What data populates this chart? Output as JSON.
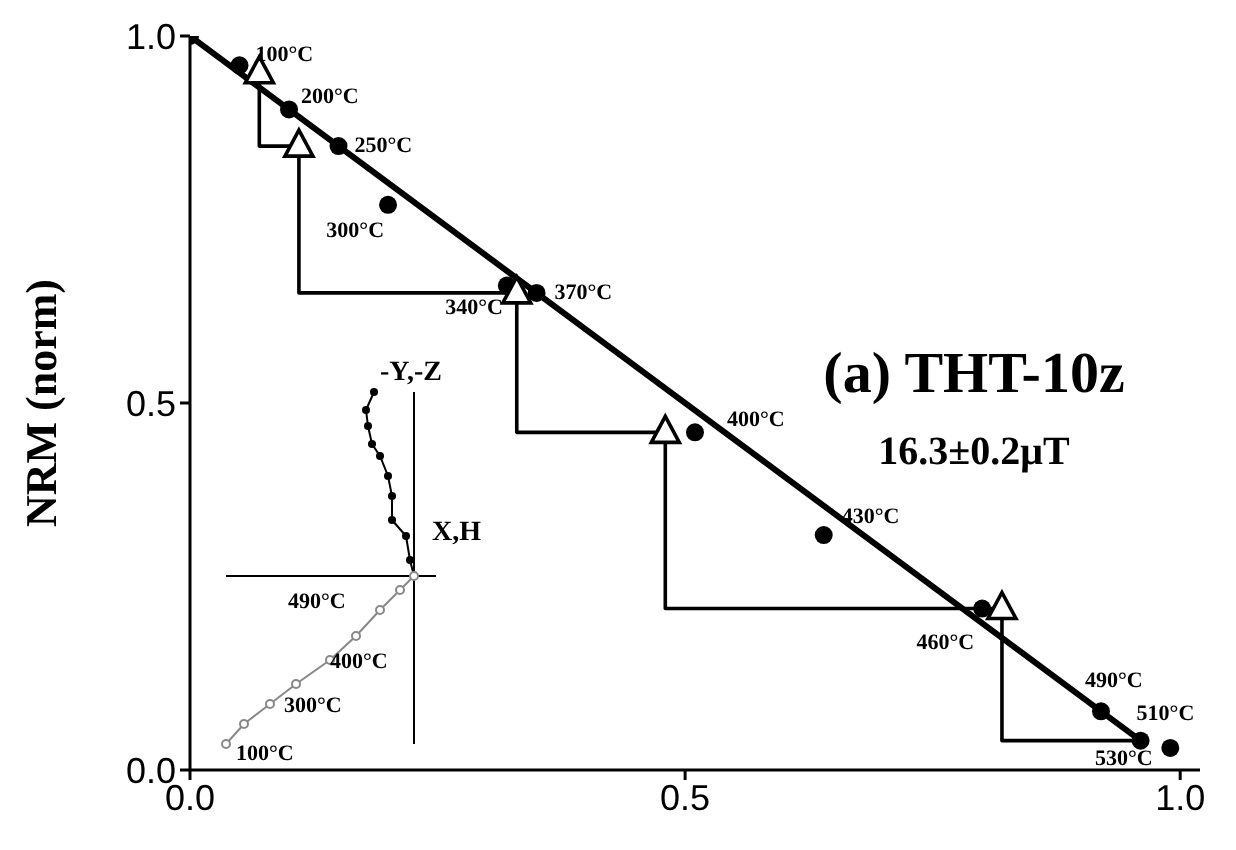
{
  "chart_data": {
    "type": "scatter",
    "title": "(a) THT-10z",
    "subtitle": "16.3±0.2μT",
    "ylabel": "NRM (norm)",
    "xlim": [
      0,
      1.02
    ],
    "ylim": [
      0,
      1.0
    ],
    "xticks": [
      {
        "value": 0,
        "label": "0.0"
      },
      {
        "value": 0.5,
        "label": "0.5"
      },
      {
        "value": 1.0,
        "label": "1.0"
      }
    ],
    "yticks": [
      {
        "value": 0,
        "label": "0.0"
      },
      {
        "value": 0.5,
        "label": "0.5"
      },
      {
        "value": 1.0,
        "label": "1.0"
      }
    ],
    "series": [
      {
        "type": "line",
        "color": "#000000",
        "x": [
          0.07,
          0.07,
          0.11,
          0.11,
          0.33,
          0.33,
          0.48,
          0.48,
          0.82,
          0.82,
          0.96
        ],
        "values": [
          0.95,
          0.85,
          0.85,
          0.65,
          0.65,
          0.46,
          0.46,
          0.22,
          0.22,
          0.04,
          0.04
        ],
        "line_style": "solid",
        "marker": "none"
      },
      {
        "type": "line",
        "color": "#000000",
        "x": [
          0,
          0.96
        ],
        "values": [
          1.0,
          0.04
        ],
        "line_style": "solid",
        "marker": "none"
      },
      {
        "color": "#000000",
        "marker": "circle",
        "x": [
          0,
          0.05,
          0.1,
          0.15,
          0.2,
          0.32,
          0.35,
          0.51,
          0.64,
          0.8,
          0.92,
          0.96,
          0.99
        ],
        "values": [
          1.0,
          0.96,
          0.9,
          0.85,
          0.77,
          0.66,
          0.65,
          0.46,
          0.32,
          0.22,
          0.08,
          0.04,
          0.03
        ]
      },
      {
        "color": "#000000",
        "marker": "triangle",
        "x": [
          0.07,
          0.11,
          0.33,
          0.48,
          0.82
        ],
        "values": [
          0.95,
          0.85,
          0.65,
          0.46,
          0.22
        ]
      }
    ],
    "annotations": [
      {
        "text": "100°C",
        "x": 0.05,
        "y": 0.96
      },
      {
        "text": "200°C",
        "x": 0.1,
        "y": 0.9
      },
      {
        "text": "250°C",
        "x": 0.15,
        "y": 0.85
      },
      {
        "text": "300°C",
        "x": 0.2,
        "y": 0.77
      },
      {
        "text": "340°C",
        "x": 0.32,
        "y": 0.66
      },
      {
        "text": "370°C",
        "x": 0.35,
        "y": 0.65
      },
      {
        "text": "400°C",
        "x": 0.51,
        "y": 0.46
      },
      {
        "text": "430°C",
        "x": 0.64,
        "y": 0.32
      },
      {
        "text": "460°C",
        "x": 0.8,
        "y": 0.22
      },
      {
        "text": "490°C",
        "x": 0.92,
        "y": 0.08
      },
      {
        "text": "510°C",
        "x": 0.99,
        "y": 0.03
      },
      {
        "text": "530°C",
        "x": 0.96,
        "y": 0.04
      },
      "-Y,-Z",
      "X,H",
      "490°C",
      "400°C",
      "300°C",
      "100°C"
    ]
  }
}
